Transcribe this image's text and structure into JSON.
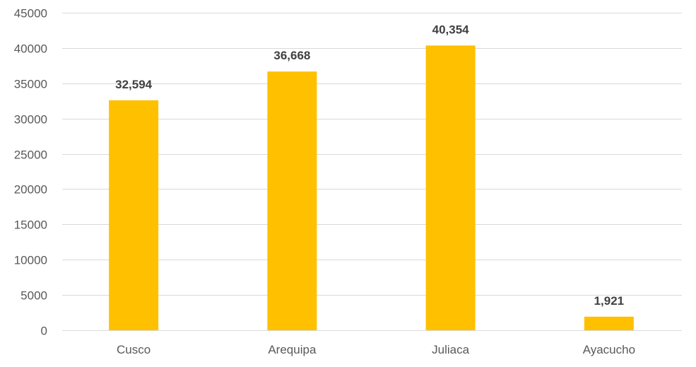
{
  "chart_data": {
    "type": "bar",
    "categories": [
      "Cusco",
      "Arequipa",
      "Juliaca",
      "Ayacucho"
    ],
    "values": [
      32594,
      36668,
      40354,
      1921
    ],
    "data_labels": [
      "32,594",
      "36,668",
      "40,354",
      "1,921"
    ],
    "yticks": [
      "0",
      "5000",
      "10000",
      "15000",
      "20000",
      "25000",
      "30000",
      "35000",
      "40000",
      "45000"
    ],
    "ylim": [
      0,
      45000
    ],
    "grid": true,
    "legend": "none",
    "colors": {
      "bar": "#FFC000",
      "grid": "#D9D9D9",
      "axis_text": "#595959",
      "label_text": "#404040"
    }
  }
}
